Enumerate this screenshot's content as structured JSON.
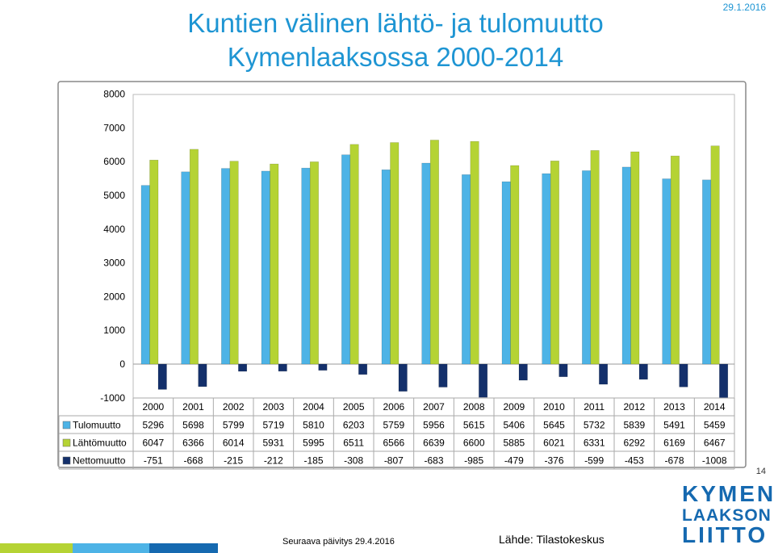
{
  "header": {
    "title_line1": "Kuntien välinen lähtö- ja tulomuutto",
    "title_line2": "Kymenlaaksossa 2000-2014",
    "date": "29.1.2016",
    "page_number": "14"
  },
  "footer": {
    "next_update": "Seuraava päivitys 29.4.2016",
    "source": "Lähde: Tilastokeskus",
    "logo_line1": "KYMEN",
    "logo_line2": "LAAKSON",
    "logo_line3": "LIITTO"
  },
  "colors": {
    "tulomuutto": "#4db3e6",
    "lahtomuutto": "#b5d334",
    "nettomuutto": "#14306b",
    "accent": "#1e95d3"
  },
  "chart_data": {
    "type": "bar",
    "title": "Kuntien välinen lähtö- ja tulomuutto Kymenlaaksossa 2000-2014",
    "categories": [
      "2000",
      "2001",
      "2002",
      "2003",
      "2004",
      "2005",
      "2006",
      "2007",
      "2008",
      "2009",
      "2010",
      "2011",
      "2012",
      "2013",
      "2014"
    ],
    "series": [
      {
        "name": "Tulomuutto",
        "values": [
          5296,
          5698,
          5799,
          5719,
          5810,
          6203,
          5759,
          5956,
          5615,
          5406,
          5645,
          5732,
          5839,
          5491,
          5459
        ]
      },
      {
        "name": "Lähtömuutto",
        "values": [
          6047,
          6366,
          6014,
          5931,
          5995,
          6511,
          6566,
          6639,
          6600,
          5885,
          6021,
          6331,
          6292,
          6169,
          6467
        ]
      },
      {
        "name": "Nettomuutto",
        "values": [
          -751,
          -668,
          -215,
          -212,
          -185,
          -308,
          -807,
          -683,
          -985,
          -479,
          -376,
          -599,
          -453,
          -678,
          -1008
        ]
      }
    ],
    "y_ticks": [
      "8000",
      "7000",
      "6000",
      "5000",
      "4000",
      "3000",
      "2000",
      "1000",
      "0",
      "-1000"
    ],
    "ylim": [
      -1000,
      8000
    ],
    "xlabel": "",
    "ylabel": "",
    "legend": "data-table-below"
  }
}
